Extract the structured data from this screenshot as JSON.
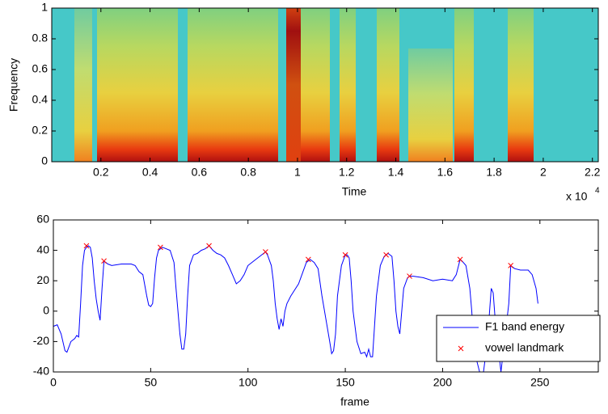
{
  "chart_data": [
    {
      "type": "spectrogram",
      "xlabel": "Time",
      "ylabel": "Frequency",
      "xlim": [
        0,
        2.224
      ],
      "xticks": [
        0.2,
        0.4,
        0.6,
        0.8,
        1,
        1.2,
        1.4,
        1.6,
        1.8,
        2,
        2.2
      ],
      "x_scale_label": "x 10",
      "x_scale_exponent": "4",
      "ylim": [
        0,
        1
      ],
      "yticks": [
        0,
        0.2,
        0.4,
        0.6,
        0.8,
        1
      ]
    },
    {
      "type": "line",
      "xlabel": "frame",
      "xlim": [
        0,
        280
      ],
      "xticks": [
        0,
        50,
        100,
        150,
        200,
        250
      ],
      "ylim": [
        -40,
        60
      ],
      "yticks": [
        -40,
        -20,
        0,
        20,
        40,
        60
      ],
      "legend": "lower right",
      "series": [
        {
          "name": "F1 band energy",
          "color": "#0000ff",
          "x": [
            0,
            2,
            4,
            6,
            7,
            9,
            11,
            12,
            13,
            14,
            15,
            16,
            17,
            18,
            19,
            20,
            21,
            22,
            23,
            24,
            25,
            26,
            27,
            28,
            30,
            35,
            40,
            42,
            44,
            46,
            48,
            49,
            50,
            51,
            52,
            53,
            54,
            56,
            58,
            60,
            62,
            63,
            64,
            65,
            66,
            67,
            68,
            69,
            70,
            72,
            74,
            76,
            78,
            80,
            82,
            84,
            86,
            88,
            90,
            92,
            94,
            96,
            98,
            100,
            102,
            104,
            106,
            108,
            109,
            110,
            112,
            113,
            114,
            115,
            116,
            117,
            118,
            119,
            120,
            122,
            124,
            126,
            128,
            130,
            132,
            134,
            136,
            138,
            140,
            142,
            143,
            144,
            145,
            146,
            148,
            150,
            151,
            152,
            153,
            154,
            156,
            158,
            160,
            161,
            162,
            163,
            164,
            165,
            166,
            168,
            170,
            171,
            172,
            174,
            175,
            176,
            177,
            178,
            179,
            180,
            182,
            183,
            185,
            190,
            195,
            200,
            205,
            207,
            209,
            210,
            212,
            214,
            215,
            216,
            217,
            219,
            221,
            223,
            225,
            226,
            227,
            230,
            234,
            235,
            237,
            240,
            244,
            246,
            248,
            249
          ],
          "values": [
            -10,
            -9,
            -15,
            -26,
            -27,
            -20,
            -18,
            -16,
            -17,
            5,
            30,
            40,
            42,
            43,
            42,
            35,
            20,
            8,
            0,
            -6,
            15,
            33,
            32,
            31,
            30,
            31,
            31,
            30,
            26,
            24,
            10,
            4,
            3,
            5,
            22,
            35,
            40,
            42,
            41,
            40,
            32,
            15,
            0,
            -15,
            -25,
            -25,
            -15,
            10,
            30,
            37,
            38,
            40,
            41,
            43,
            40,
            38,
            37,
            35,
            30,
            24,
            18,
            20,
            24,
            30,
            32,
            34,
            36,
            38,
            39,
            37,
            30,
            20,
            5,
            -5,
            -12,
            -5,
            -10,
            0,
            5,
            10,
            14,
            18,
            25,
            32,
            34,
            32,
            28,
            10,
            -5,
            -20,
            -28,
            -26,
            -15,
            10,
            30,
            37,
            37,
            35,
            20,
            0,
            -20,
            -28,
            -27,
            -30,
            -25,
            -30,
            -30,
            -10,
            10,
            30,
            36,
            37,
            38,
            36,
            20,
            0,
            -10,
            -15,
            0,
            15,
            22,
            23,
            23,
            22,
            20,
            21,
            20,
            24,
            34,
            33,
            30,
            15,
            0,
            -20,
            -30,
            -40,
            -40,
            -20,
            15,
            12,
            -5,
            -40,
            5,
            30,
            28,
            27,
            27,
            24,
            15,
            5
          ]
        },
        {
          "name": "vowel landmark",
          "color": "#ff0000",
          "marker": "x",
          "x": [
            17,
            26,
            55,
            80,
            109,
            131,
            150,
            171,
            183,
            209,
            235
          ],
          "values": [
            43,
            33,
            42,
            43,
            39,
            34,
            37,
            37,
            23,
            34,
            30
          ]
        }
      ]
    }
  ]
}
